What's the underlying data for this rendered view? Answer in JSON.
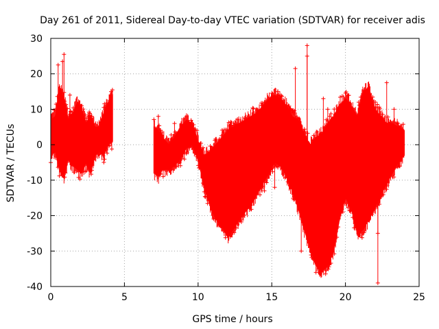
{
  "chart_data": {
    "type": "scatter",
    "title": "Day 261 of 2011, Sidereal Day-to-day VTEC variation (SDTVAR) for receiver adis",
    "xlabel": "GPS time / hours",
    "ylabel": "SDTVAR / TECUs",
    "xlim": [
      0,
      25
    ],
    "ylim": [
      -40,
      30
    ],
    "xticks": [
      0,
      5,
      10,
      15,
      20,
      25
    ],
    "yticks": [
      -40,
      -30,
      -20,
      -10,
      0,
      10,
      20,
      30
    ],
    "grid": true,
    "legend": "none",
    "series_color": "#ff0000",
    "series": [
      {
        "name": "SDTVAR",
        "marker": "+",
        "envelope_note": "dense per-epoch scatter summarised as min/max band (hours, TECU)",
        "segments": [
          {
            "x": [
              0.0,
              0.3,
              0.6,
              0.9,
              1.2,
              1.5,
              1.8,
              2.1,
              2.4,
              2.7,
              3.0,
              3.3,
              3.6,
              3.9,
              4.2
            ],
            "min": [
              -3,
              -2,
              -7,
              -9,
              -4,
              -6,
              -7,
              -8,
              -5,
              -8,
              -3,
              -2,
              -3,
              0,
              1
            ],
            "max": [
              7,
              8,
              16,
              13,
              7,
              9,
              12,
              10,
              6,
              8,
              5,
              5,
              9,
              12,
              14
            ]
          },
          {
            "x": [
              7.0,
              7.3,
              7.6,
              8.0,
              8.4,
              8.8,
              9.2,
              9.6,
              10.0,
              10.4,
              10.8,
              11.2,
              11.6,
              12.0,
              12.4,
              12.8,
              13.2,
              13.6,
              14.0,
              14.4,
              14.8,
              15.2,
              15.6,
              16.0,
              16.4,
              16.8,
              17.2,
              17.6,
              18.0,
              18.4,
              18.8,
              19.2,
              19.6,
              20.0,
              20.4,
              20.8,
              21.2,
              21.6,
              22.0,
              22.4,
              22.8,
              23.2,
              23.6,
              24.0
            ],
            "min": [
              -8,
              -9,
              -7,
              -7,
              -6,
              -4,
              -1,
              0,
              -4,
              -12,
              -17,
              -21,
              -23,
              -26,
              -24,
              -21,
              -19,
              -17,
              -14,
              -11,
              -8,
              -5,
              -6,
              -9,
              -13,
              -18,
              -24,
              -29,
              -34,
              -36,
              -34,
              -30,
              -21,
              -15,
              -18,
              -25,
              -24,
              -21,
              -18,
              -14,
              -11,
              -8,
              -5,
              -3
            ],
            "max": [
              5,
              4,
              2,
              0,
              2,
              5,
              7,
              6,
              1,
              -3,
              -2,
              0,
              2,
              4,
              5,
              6,
              7,
              8,
              9,
              11,
              13,
              14,
              13,
              11,
              8,
              7,
              3,
              0,
              2,
              3,
              6,
              8,
              11,
              13,
              11,
              8,
              15,
              16,
              10,
              8,
              6,
              6,
              5,
              4
            ]
          }
        ],
        "outliers": [
          [
            0.9,
            25.5
          ],
          [
            0.8,
            23.5
          ],
          [
            0.5,
            22.5
          ],
          [
            1.3,
            14
          ],
          [
            2.1,
            11
          ],
          [
            4.1,
            15
          ],
          [
            7.3,
            8
          ],
          [
            8.4,
            6
          ],
          [
            14.0,
            9
          ],
          [
            14.5,
            12
          ],
          [
            15.4,
            15
          ],
          [
            15.2,
            -12
          ],
          [
            14.5,
            -13
          ],
          [
            17.4,
            28
          ],
          [
            17.4,
            25
          ],
          [
            16.6,
            21.5
          ],
          [
            17.0,
            -30
          ],
          [
            18.0,
            -36
          ],
          [
            18.4,
            -33
          ],
          [
            18.5,
            13
          ],
          [
            18.8,
            10
          ],
          [
            20.9,
            12
          ],
          [
            21.4,
            2
          ],
          [
            21.8,
            -19
          ],
          [
            22.2,
            -39
          ],
          [
            22.2,
            -25
          ],
          [
            22.8,
            17.5
          ],
          [
            23.3,
            10
          ]
        ]
      }
    ]
  }
}
